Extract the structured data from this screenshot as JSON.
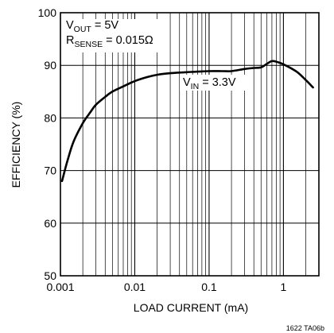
{
  "chart_data": {
    "type": "line",
    "xlabel": "LOAD CURRENT (mA)",
    "ylabel": "EFFICIENCY (%)",
    "xscale": "log",
    "xlim": [
      0.001,
      3
    ],
    "ylim": [
      50,
      100
    ],
    "grid": true,
    "x_ticks": [
      0.001,
      0.01,
      0.1,
      1
    ],
    "x_tick_labels": [
      "0.001",
      "0.01",
      "0.1",
      "1"
    ],
    "y_ticks": [
      50,
      60,
      70,
      80,
      90,
      100
    ],
    "y_tick_labels": [
      "50",
      "60",
      "70",
      "80",
      "90",
      "100"
    ],
    "annotations": [
      {
        "main": "V",
        "sub": "OUT",
        "rest": " = 5V"
      },
      {
        "main": "R",
        "sub": "SENSE",
        "rest": " = 0.015Ω"
      },
      {
        "main": "V",
        "sub": "IN",
        "rest": " = 3.3V"
      }
    ],
    "figure_id": "1622 TA06b",
    "series": [
      {
        "color": "#000000",
        "x": [
          0.00105,
          0.00125,
          0.0015,
          0.002,
          0.0025,
          0.003,
          0.004,
          0.005,
          0.007,
          0.01,
          0.015,
          0.02,
          0.03,
          0.05,
          0.07,
          0.1,
          0.15,
          0.2,
          0.3,
          0.4,
          0.5,
          0.6,
          0.7,
          0.8,
          1.0,
          1.5,
          2.0,
          2.5
        ],
        "y": [
          68,
          72,
          75.5,
          79,
          81,
          82.5,
          84,
          85,
          86,
          87,
          87.8,
          88.2,
          88.5,
          88.7,
          88.8,
          88.9,
          88.9,
          88.9,
          89.3,
          89.5,
          89.6,
          90.3,
          90.8,
          90.7,
          90.2,
          88.8,
          87.2,
          85.8
        ]
      }
    ]
  }
}
